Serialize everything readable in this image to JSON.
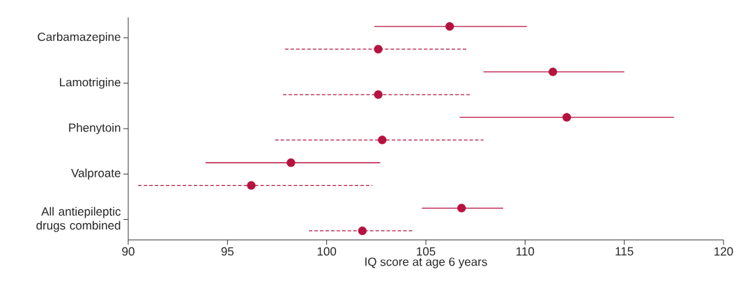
{
  "chart_data": {
    "type": "scatter",
    "orientation": "horizontal",
    "xlabel": "IQ score at age 6 years",
    "categories": [
      "Carbamazepine",
      "Lamotrigine",
      "Phenytoin",
      "Valproate",
      "All antiepileptic drugs combined"
    ],
    "xlim": [
      90,
      120
    ],
    "xticks": [
      90,
      95,
      100,
      105,
      110,
      115,
      120
    ],
    "marker": "circle",
    "series": [
      {
        "color": "#b5123f",
        "line_style": "solid",
        "values": [
          106.2,
          111.4,
          112.1,
          98.2,
          106.8
        ],
        "errors": [
          [
            102.4,
            110.1
          ],
          [
            107.9,
            115.0
          ],
          [
            106.7,
            117.5
          ],
          [
            93.9,
            102.7
          ],
          [
            104.8,
            108.9
          ]
        ]
      },
      {
        "color": "#b5123f",
        "line_style": "dashed",
        "values": [
          102.6,
          102.6,
          102.8,
          96.2,
          101.8
        ],
        "errors": [
          [
            97.9,
            107.1
          ],
          [
            97.8,
            107.3
          ],
          [
            97.4,
            107.9
          ],
          [
            90.5,
            102.3
          ],
          [
            99.1,
            104.4
          ]
        ]
      }
    ]
  }
}
